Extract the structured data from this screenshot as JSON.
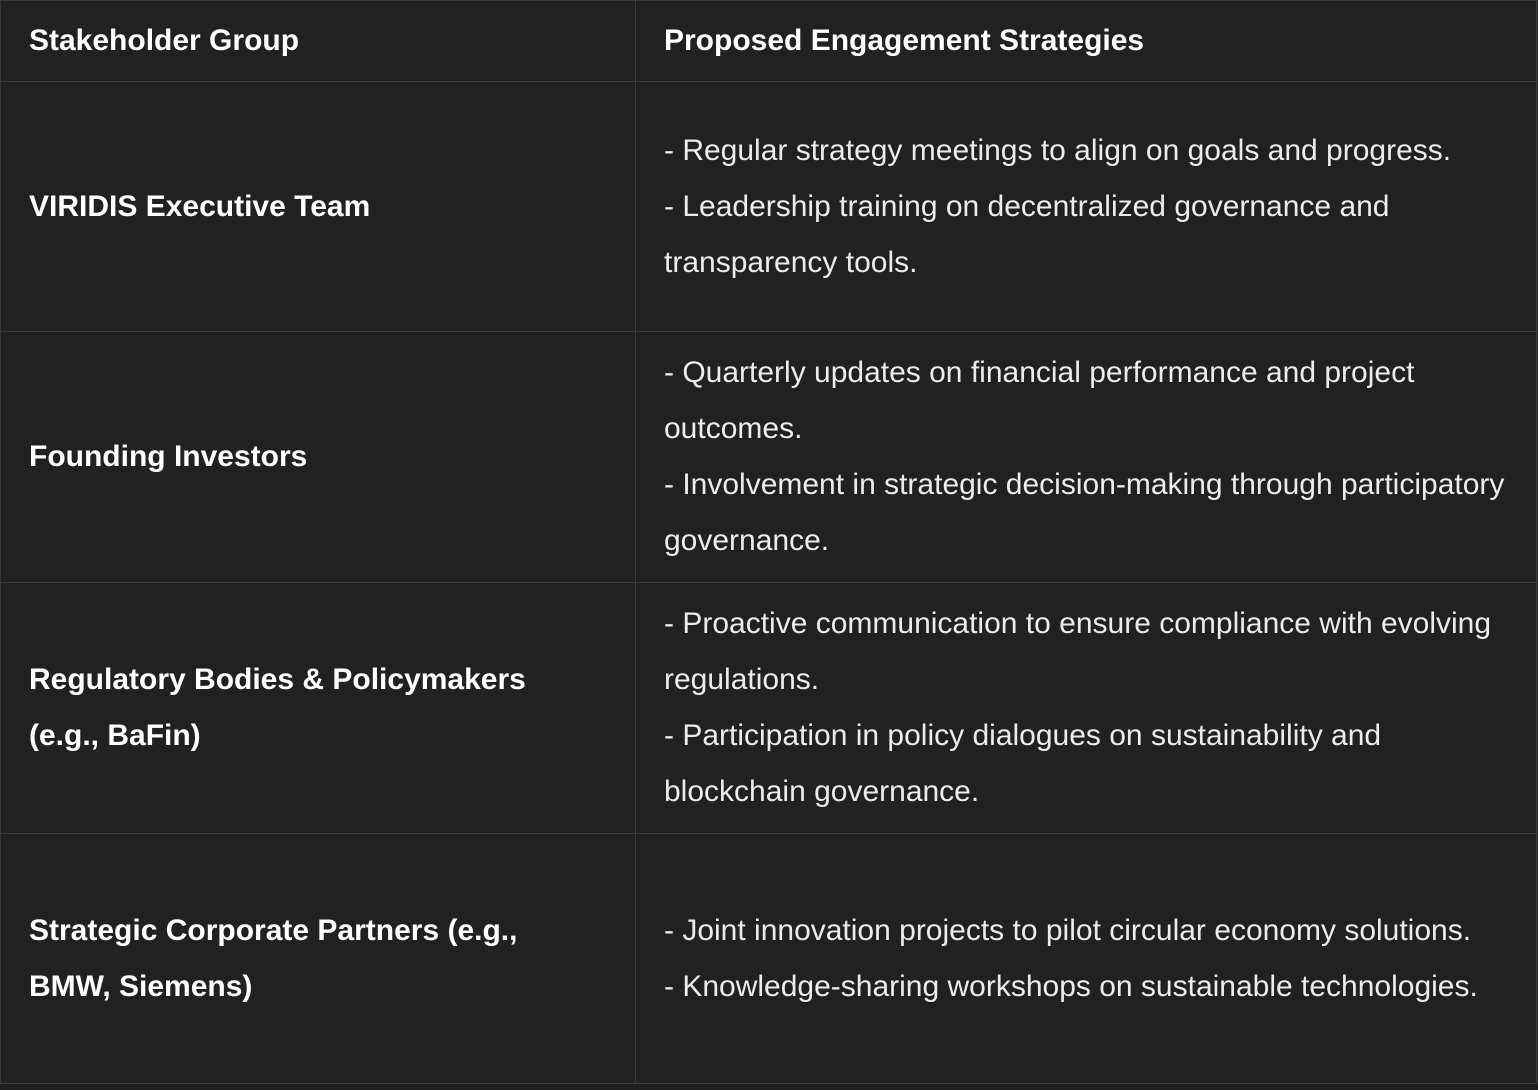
{
  "table": {
    "headers": [
      "Stakeholder Group",
      "Proposed Engagement Strategies"
    ],
    "rows": [
      {
        "group": "VIRIDIS Executive Team",
        "strategies": [
          "- Regular strategy meetings to align on goals and progress.",
          "- Leadership training on decentralized governance and transparency tools."
        ]
      },
      {
        "group": "Founding Investors",
        "strategies": [
          "- Quarterly updates on financial performance and project outcomes.",
          "- Involvement in strategic decision-making through participatory governance."
        ]
      },
      {
        "group": "Regulatory Bodies & Policymakers (e.g., BaFin)",
        "strategies": [
          "- Proactive communication to ensure compliance with evolving regulations.",
          "- Participation in policy dialogues on sustainability and blockchain governance."
        ]
      },
      {
        "group": "Strategic Corporate Partners (e.g., BMW, Siemens)",
        "strategies": [
          "- Joint innovation projects to pilot circular economy solutions.",
          "- Knowledge-sharing workshops on sustainable technologies."
        ]
      }
    ]
  }
}
